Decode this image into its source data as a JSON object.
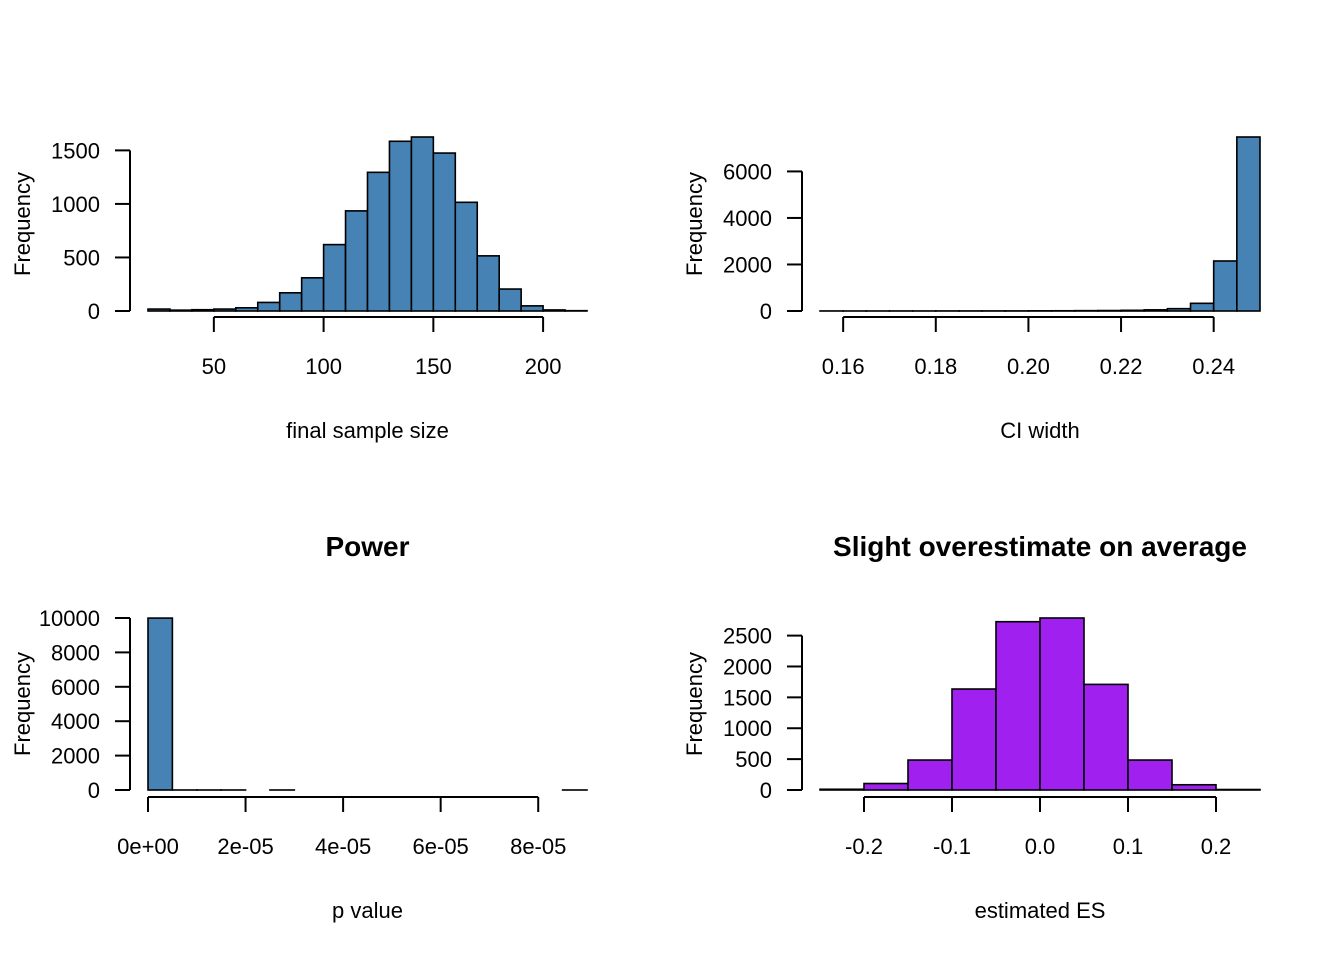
{
  "chart_data": [
    {
      "type": "bar",
      "title": "",
      "xlabel": "final sample size",
      "ylabel": "Frequency",
      "bar_color": "#4682B4",
      "bin_edges": [
        20,
        30,
        40,
        50,
        60,
        70,
        80,
        90,
        100,
        110,
        120,
        130,
        140,
        150,
        160,
        170,
        180,
        190,
        200,
        210,
        220
      ],
      "values": [
        18,
        8,
        12,
        18,
        30,
        80,
        170,
        310,
        620,
        935,
        1295,
        1585,
        1625,
        1475,
        1015,
        515,
        205,
        48,
        10,
        3
      ],
      "xticks": [
        50,
        100,
        150,
        200
      ],
      "xtick_labels": [
        "50",
        "100",
        "150",
        "200"
      ],
      "yticks": [
        0,
        500,
        1000,
        1500
      ],
      "ytick_labels": [
        "0",
        "500",
        "1000",
        "1500"
      ],
      "xlim": [
        20,
        220
      ],
      "ylim": [
        0,
        1625
      ]
    },
    {
      "type": "bar",
      "title": "",
      "xlabel": "CI width",
      "ylabel": "Frequency",
      "bar_color": "#4682B4",
      "bin_edges": [
        0.155,
        0.16,
        0.165,
        0.17,
        0.175,
        0.18,
        0.185,
        0.19,
        0.195,
        0.2,
        0.205,
        0.21,
        0.215,
        0.22,
        0.225,
        0.23,
        0.235,
        0.24,
        0.245,
        0.25
      ],
      "values": [
        2,
        1,
        1,
        2,
        2,
        3,
        3,
        4,
        5,
        8,
        10,
        15,
        20,
        30,
        50,
        100,
        330,
        2150,
        7480
      ],
      "xticks": [
        0.16,
        0.18,
        0.2,
        0.22,
        0.24
      ],
      "xtick_labels": [
        "0.16",
        "0.18",
        "0.20",
        "0.22",
        "0.24"
      ],
      "yticks": [
        0,
        2000,
        4000,
        6000
      ],
      "ytick_labels": [
        "0",
        "2000",
        "4000",
        "6000"
      ],
      "xlim": [
        0.155,
        0.25
      ],
      "ylim": [
        0,
        7480
      ]
    },
    {
      "type": "bar",
      "title": "Power",
      "xlabel": "p value",
      "ylabel": "Frequency",
      "bar_color": "#4682B4",
      "bin_edges": [
        0,
        5e-06,
        1e-05,
        1.5e-05,
        2e-05,
        2.5e-05,
        3e-05,
        3.5e-05,
        4e-05,
        4.5e-05,
        5e-05,
        5.5e-05,
        6e-05,
        6.5e-05,
        7e-05,
        7.5e-05,
        8e-05,
        8.5e-05,
        9e-05
      ],
      "values": [
        9995,
        1,
        1,
        1,
        0,
        1,
        0,
        0,
        0,
        0,
        0,
        0,
        0,
        0,
        0,
        0,
        0,
        1
      ],
      "xticks": [
        0,
        2e-05,
        4e-05,
        6e-05,
        8e-05
      ],
      "xtick_labels": [
        "0e+00",
        "2e-05",
        "4e-05",
        "6e-05",
        "8e-05"
      ],
      "yticks": [
        0,
        2000,
        4000,
        6000,
        8000,
        10000
      ],
      "ytick_labels": [
        "0",
        "2000",
        "4000",
        "6000",
        "8000",
        "10000"
      ],
      "xlim": [
        0,
        9e-05
      ],
      "ylim": [
        0,
        10000
      ]
    },
    {
      "type": "bar",
      "title": "Slight overestimate on average",
      "xlabel": "estimated ES",
      "ylabel": "Frequency",
      "bar_color": "#A020F0",
      "bin_edges": [
        -0.25,
        -0.2,
        -0.15,
        -0.1,
        -0.05,
        0,
        0.05,
        0.1,
        0.15,
        0.2,
        0.25
      ],
      "values": [
        12,
        105,
        485,
        1635,
        2725,
        2785,
        1710,
        485,
        85,
        8
      ],
      "xticks": [
        -0.2,
        -0.1,
        0,
        0.1,
        0.2
      ],
      "xtick_labels": [
        "-0.2",
        "-0.1",
        "0.0",
        "0.1",
        "0.2"
      ],
      "yticks": [
        0,
        500,
        1000,
        1500,
        2000,
        2500
      ],
      "ytick_labels": [
        "0",
        "500",
        "1000",
        "1500",
        "2000",
        "2500"
      ],
      "xlim": [
        -0.25,
        0.25
      ],
      "ylim": [
        0,
        2785
      ]
    }
  ]
}
